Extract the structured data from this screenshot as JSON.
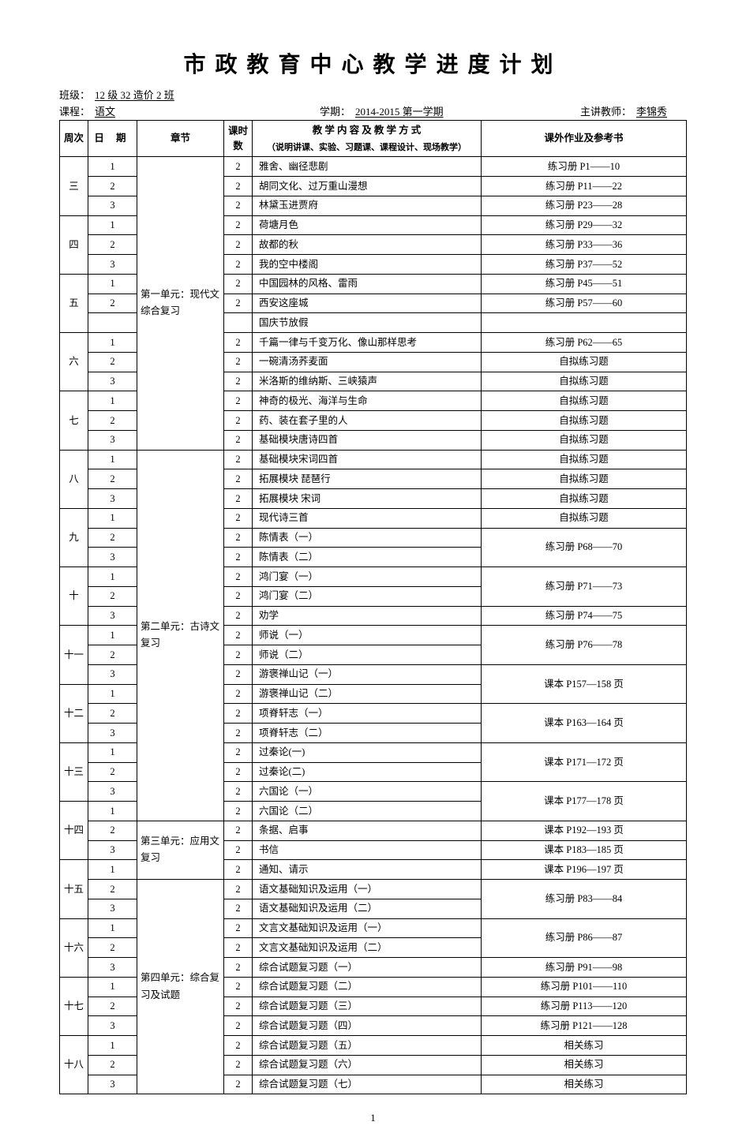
{
  "title": "市政教育中心教学进度计划",
  "meta": {
    "class_label": "班级：",
    "class_value": "12 级 32 造价 2 班",
    "course_label": "课程：",
    "course_value": "语文",
    "term_label": "学期：",
    "term_value": "2014-2015 第一学期",
    "teacher_label": "主讲教师：",
    "teacher_value": "李锦秀"
  },
  "headers": {
    "week": "周次",
    "date": "日 期",
    "chapter": "章节",
    "hours": "课时数",
    "content_main": "教 学 内 容 及 教 学 方 式",
    "content_sub": "（说明讲课、实验、习题课、课程设计、现场教学）",
    "homework": "课外作业及参考书"
  },
  "chapters": {
    "c1": "第一单元：现代文综合复习",
    "c2": "第二单元：古诗文复习",
    "c3": "第三单元：应用文复习",
    "c4": "第四单元：综合复习及试题"
  },
  "rows": [
    {
      "week": "三",
      "day": "1",
      "hours": "2",
      "content": "雅舍、幽径悲剧",
      "hw": "练习册 P1——10"
    },
    {
      "day": "2",
      "hours": "2",
      "content": "胡同文化、过万重山漫想",
      "hw": "练习册 P11——22"
    },
    {
      "day": "3",
      "hours": "2",
      "content": "林黛玉进贾府",
      "hw": "练习册 P23——28"
    },
    {
      "week": "四",
      "day": "1",
      "hours": "2",
      "content": "荷塘月色",
      "hw": "练习册 P29——32"
    },
    {
      "day": "2",
      "hours": "2",
      "content": "故都的秋",
      "hw": "练习册 P33——36"
    },
    {
      "day": "3",
      "hours": "2",
      "content": "我的空中楼阁",
      "hw": "练习册 P37——52"
    },
    {
      "week": "五",
      "day": "1",
      "hours": "2",
      "content": "中国园林的风格、雷雨",
      "hw": "练习册 P45——51"
    },
    {
      "day": "2",
      "hours": "2",
      "content": "西安这座城",
      "hw": "练习册 P57——60"
    },
    {
      "day": "",
      "hours": "",
      "content": "国庆节放假",
      "hw": ""
    },
    {
      "week": "六",
      "day": "1",
      "hours": "2",
      "content": "千篇一律与千变万化、像山那样思考",
      "hw": "练习册 P62——65"
    },
    {
      "day": "2",
      "hours": "2",
      "content": "一碗清汤荞麦面",
      "hw": "自拟练习题"
    },
    {
      "day": "3",
      "hours": "2",
      "content": "米洛斯的维纳斯、三峡猿声",
      "hw": "自拟练习题"
    },
    {
      "week": "七",
      "day": "1",
      "hours": "2",
      "content": "神奇的极光、海洋与生命",
      "hw": "自拟练习题"
    },
    {
      "day": "2",
      "hours": "2",
      "content": "药、装在套子里的人",
      "hw": "自拟练习题"
    },
    {
      "day": "3",
      "hours": "2",
      "content": "基础模块唐诗四首",
      "hw": "自拟练习题"
    },
    {
      "week": "八",
      "day": "1",
      "hours": "2",
      "content": "基础模块宋词四首",
      "hw": "自拟练习题"
    },
    {
      "day": "2",
      "hours": "2",
      "content": "拓展模块 琵琶行",
      "hw": "自拟练习题"
    },
    {
      "day": "3",
      "hours": "2",
      "content": "拓展模块 宋词",
      "hw": "自拟练习题"
    },
    {
      "week": "九",
      "day": "1",
      "hours": "2",
      "content": "现代诗三首",
      "hw": "自拟练习题"
    },
    {
      "day": "2",
      "hours": "2",
      "content": "陈情表（一）",
      "hw": "练习册 P68——70",
      "hw_rowspan": 2
    },
    {
      "day": "3",
      "hours": "2",
      "content": "陈情表（二）"
    },
    {
      "week": "十",
      "day": "1",
      "hours": "2",
      "content": "鸿门宴（一）",
      "hw": "练习册 P71——73",
      "hw_rowspan": 2
    },
    {
      "day": "2",
      "hours": "2",
      "content": "鸿门宴（二）"
    },
    {
      "day": "3",
      "hours": "2",
      "content": "劝学",
      "hw": "练习册 P74——75"
    },
    {
      "week": "十一",
      "day": "1",
      "hours": "2",
      "content": "师说（一）",
      "hw": "练习册 P76——78",
      "hw_rowspan": 2
    },
    {
      "day": "2",
      "hours": "2",
      "content": "师说（二）"
    },
    {
      "day": "3",
      "hours": "2",
      "content": "游褒禅山记（一）",
      "hw": "课本 P157—158 页",
      "hw_rowspan": 2
    },
    {
      "week": "十二",
      "day": "1",
      "hours": "2",
      "content": "游褒禅山记（二）"
    },
    {
      "day": "2",
      "hours": "2",
      "content": "项脊轩志（一）",
      "hw": "课本 P163—164 页",
      "hw_rowspan": 2
    },
    {
      "day": "3",
      "hours": "2",
      "content": "项脊轩志（二）"
    },
    {
      "week": "十三",
      "day": "1",
      "hours": "2",
      "content": "过秦论(一)",
      "hw": "课本 P171—172 页",
      "hw_rowspan": 2
    },
    {
      "day": "2",
      "hours": "2",
      "content": "过秦论(二)"
    },
    {
      "day": "3",
      "hours": "2",
      "content": "六国论（一）",
      "hw": "课本 P177—178 页",
      "hw_rowspan": 2
    },
    {
      "week": "十四",
      "day": "1",
      "hours": "2",
      "content": "六国论（二）"
    },
    {
      "day": "2",
      "hours": "2",
      "content": "条据、启事",
      "hw": "课本 P192—193 页"
    },
    {
      "day": "3",
      "hours": "2",
      "content": "书信",
      "hw": "课本 P183—185 页"
    },
    {
      "week": "十五",
      "day": "1",
      "hours": "2",
      "content": "通知、请示",
      "hw": "课本 P196—197 页"
    },
    {
      "day": "2",
      "hours": "2",
      "content": "语文基础知识及运用（一）",
      "hw": "练习册 P83——84",
      "hw_rowspan": 2
    },
    {
      "day": "3",
      "hours": "2",
      "content": "语文基础知识及运用（二）"
    },
    {
      "week": "十六",
      "day": "1",
      "hours": "2",
      "content": "文言文基础知识及运用（一）",
      "hw": "练习册 P86——87",
      "hw_rowspan": 2
    },
    {
      "day": "2",
      "hours": "2",
      "content": "文言文基础知识及运用（二）"
    },
    {
      "day": "3",
      "hours": "2",
      "content": "综合试题复习题（一）",
      "hw": "练习册 P91——98"
    },
    {
      "week": "十七",
      "day": "1",
      "hours": "2",
      "content": "综合试题复习题（二）",
      "hw": "练习册 P101——110"
    },
    {
      "day": "2",
      "hours": "2",
      "content": "综合试题复习题（三）",
      "hw": "练习册 P113——120"
    },
    {
      "day": "3",
      "hours": "2",
      "content": "综合试题复习题（四）",
      "hw": "练习册 P121——128"
    },
    {
      "week": "十八",
      "day": "1",
      "hours": "2",
      "content": "综合试题复习题（五）",
      "hw": "相关练习"
    },
    {
      "day": "2",
      "hours": "2",
      "content": "综合试题复习题（六）",
      "hw": "相关练习"
    },
    {
      "day": "3",
      "hours": "2",
      "content": "综合试题复习题（七）",
      "hw": "相关练习"
    }
  ],
  "week_spans": {
    "三": 3,
    "四": 3,
    "五": 3,
    "六": 3,
    "七": 3,
    "八": 3,
    "九": 3,
    "十": 3,
    "十一": 3,
    "十二": 3,
    "十三": 3,
    "十四": 3,
    "十五": 3,
    "十六": 3,
    "十七": 3,
    "十八": 3
  },
  "chapter_blocks": [
    {
      "chapter_key": "c1",
      "start": 0,
      "span": 15
    },
    {
      "chapter_key": "c2",
      "start": 15,
      "span": 19
    },
    {
      "chapter_key": "c3",
      "start": 34,
      "span": 3
    },
    {
      "chapter_key": "c4",
      "start": 37,
      "span": 11
    }
  ],
  "page_number": "1"
}
